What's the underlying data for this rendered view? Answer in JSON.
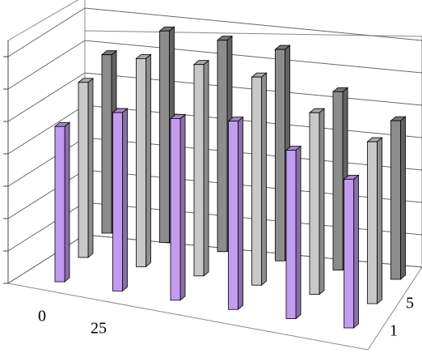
{
  "chart_data": {
    "type": "bar3d",
    "categories": [
      "0",
      "25",
      null,
      null,
      null,
      null
    ],
    "series": [
      {
        "name": "1",
        "color": "#c39cf0",
        "values": [
          4.7,
          5.4,
          5.5,
          5.7,
          5.1,
          4.5
        ]
      },
      {
        "name": "5",
        "color": "#c8c8c8",
        "values": [
          5.3,
          6.3,
          6.4,
          6.3,
          5.5,
          4.9
        ]
      },
      {
        "name": null,
        "color": "#8c8c8c",
        "values": [
          5.4,
          6.4,
          6.4,
          6.4,
          5.4,
          4.8
        ]
      }
    ],
    "ylim": [
      0,
      7.5
    ],
    "yticks": [
      0,
      1,
      2,
      3,
      4,
      5,
      6,
      7
    ],
    "grid": true
  }
}
